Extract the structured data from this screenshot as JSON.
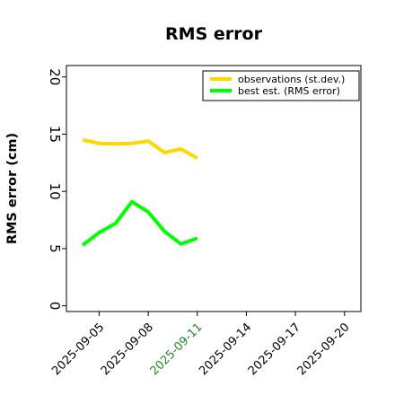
{
  "chart_data": {
    "type": "line",
    "title": "RMS error",
    "xlabel": "",
    "ylabel": "RMS error (cm)",
    "x_is_date": true,
    "xlim": [
      "2025-09-03",
      "2025-09-21"
    ],
    "ylim": [
      -0.5,
      21
    ],
    "yticks": [
      0,
      5,
      10,
      15,
      20
    ],
    "xticks": [
      "2025-09-05",
      "2025-09-08",
      "2025-09-11",
      "2025-09-14",
      "2025-09-17",
      "2025-09-20"
    ],
    "highlighted_xtick": "2025-09-11",
    "highlight_color": "#228b22",
    "legend_position": "top-right",
    "grid": false,
    "series": [
      {
        "name": "observations (st.dev.)",
        "color": "#ffd700",
        "x": [
          "2025-09-04",
          "2025-09-05",
          "2025-09-06",
          "2025-09-07",
          "2025-09-08",
          "2025-09-09",
          "2025-09-10",
          "2025-09-11"
        ],
        "values": [
          14.5,
          14.2,
          14.15,
          14.2,
          14.4,
          13.4,
          13.7,
          12.9
        ]
      },
      {
        "name": "best est. (RMS error)",
        "color": "#00ff00",
        "x": [
          "2025-09-04",
          "2025-09-05",
          "2025-09-06",
          "2025-09-07",
          "2025-09-08",
          "2025-09-09",
          "2025-09-10",
          "2025-09-11"
        ],
        "values": [
          5.3,
          6.4,
          7.2,
          9.1,
          8.2,
          6.5,
          5.4,
          5.9
        ]
      }
    ]
  }
}
